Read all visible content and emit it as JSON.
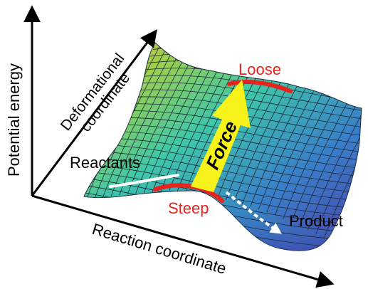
{
  "axes": {
    "vertical": "Potential energy",
    "depth_line1": "Deformational",
    "depth_line2": "coordinate",
    "horizontal": "Reaction coordinate"
  },
  "labels": {
    "reactants": "Reactants",
    "product": "Product",
    "loose": "Loose",
    "steep": "Steep",
    "force": "Force"
  },
  "colors": {
    "arrow": "#f7f21a",
    "highlight": "#e8221c",
    "path_arrow": "#ffffff",
    "mesh": "#1a2a3a"
  }
}
